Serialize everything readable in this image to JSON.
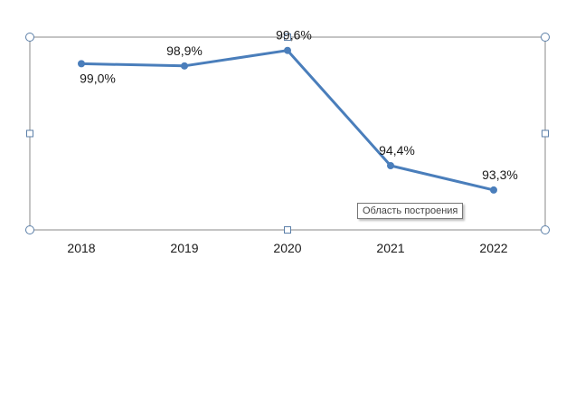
{
  "chart_data": {
    "type": "line",
    "categories": [
      "2018",
      "2019",
      "2020",
      "2021",
      "2022"
    ],
    "series": [
      {
        "values": [
          99.0,
          98.9,
          99.6,
          94.4,
          93.3
        ],
        "data_labels": [
          "99,0%",
          "98,9%",
          "99,6%",
          "94,4%",
          "93,3%"
        ],
        "color": "#4a7ebb"
      }
    ],
    "title": "",
    "xlabel": "",
    "ylabel": "",
    "ylim": [
      91.5,
      100.2
    ],
    "grid": false,
    "legend": "none",
    "plot_area_selected": true
  },
  "tooltip": {
    "text": "Область построения"
  },
  "colors": {
    "line": "#4a7ebb",
    "frame": "#888888",
    "handle": "#5b7fa8"
  }
}
